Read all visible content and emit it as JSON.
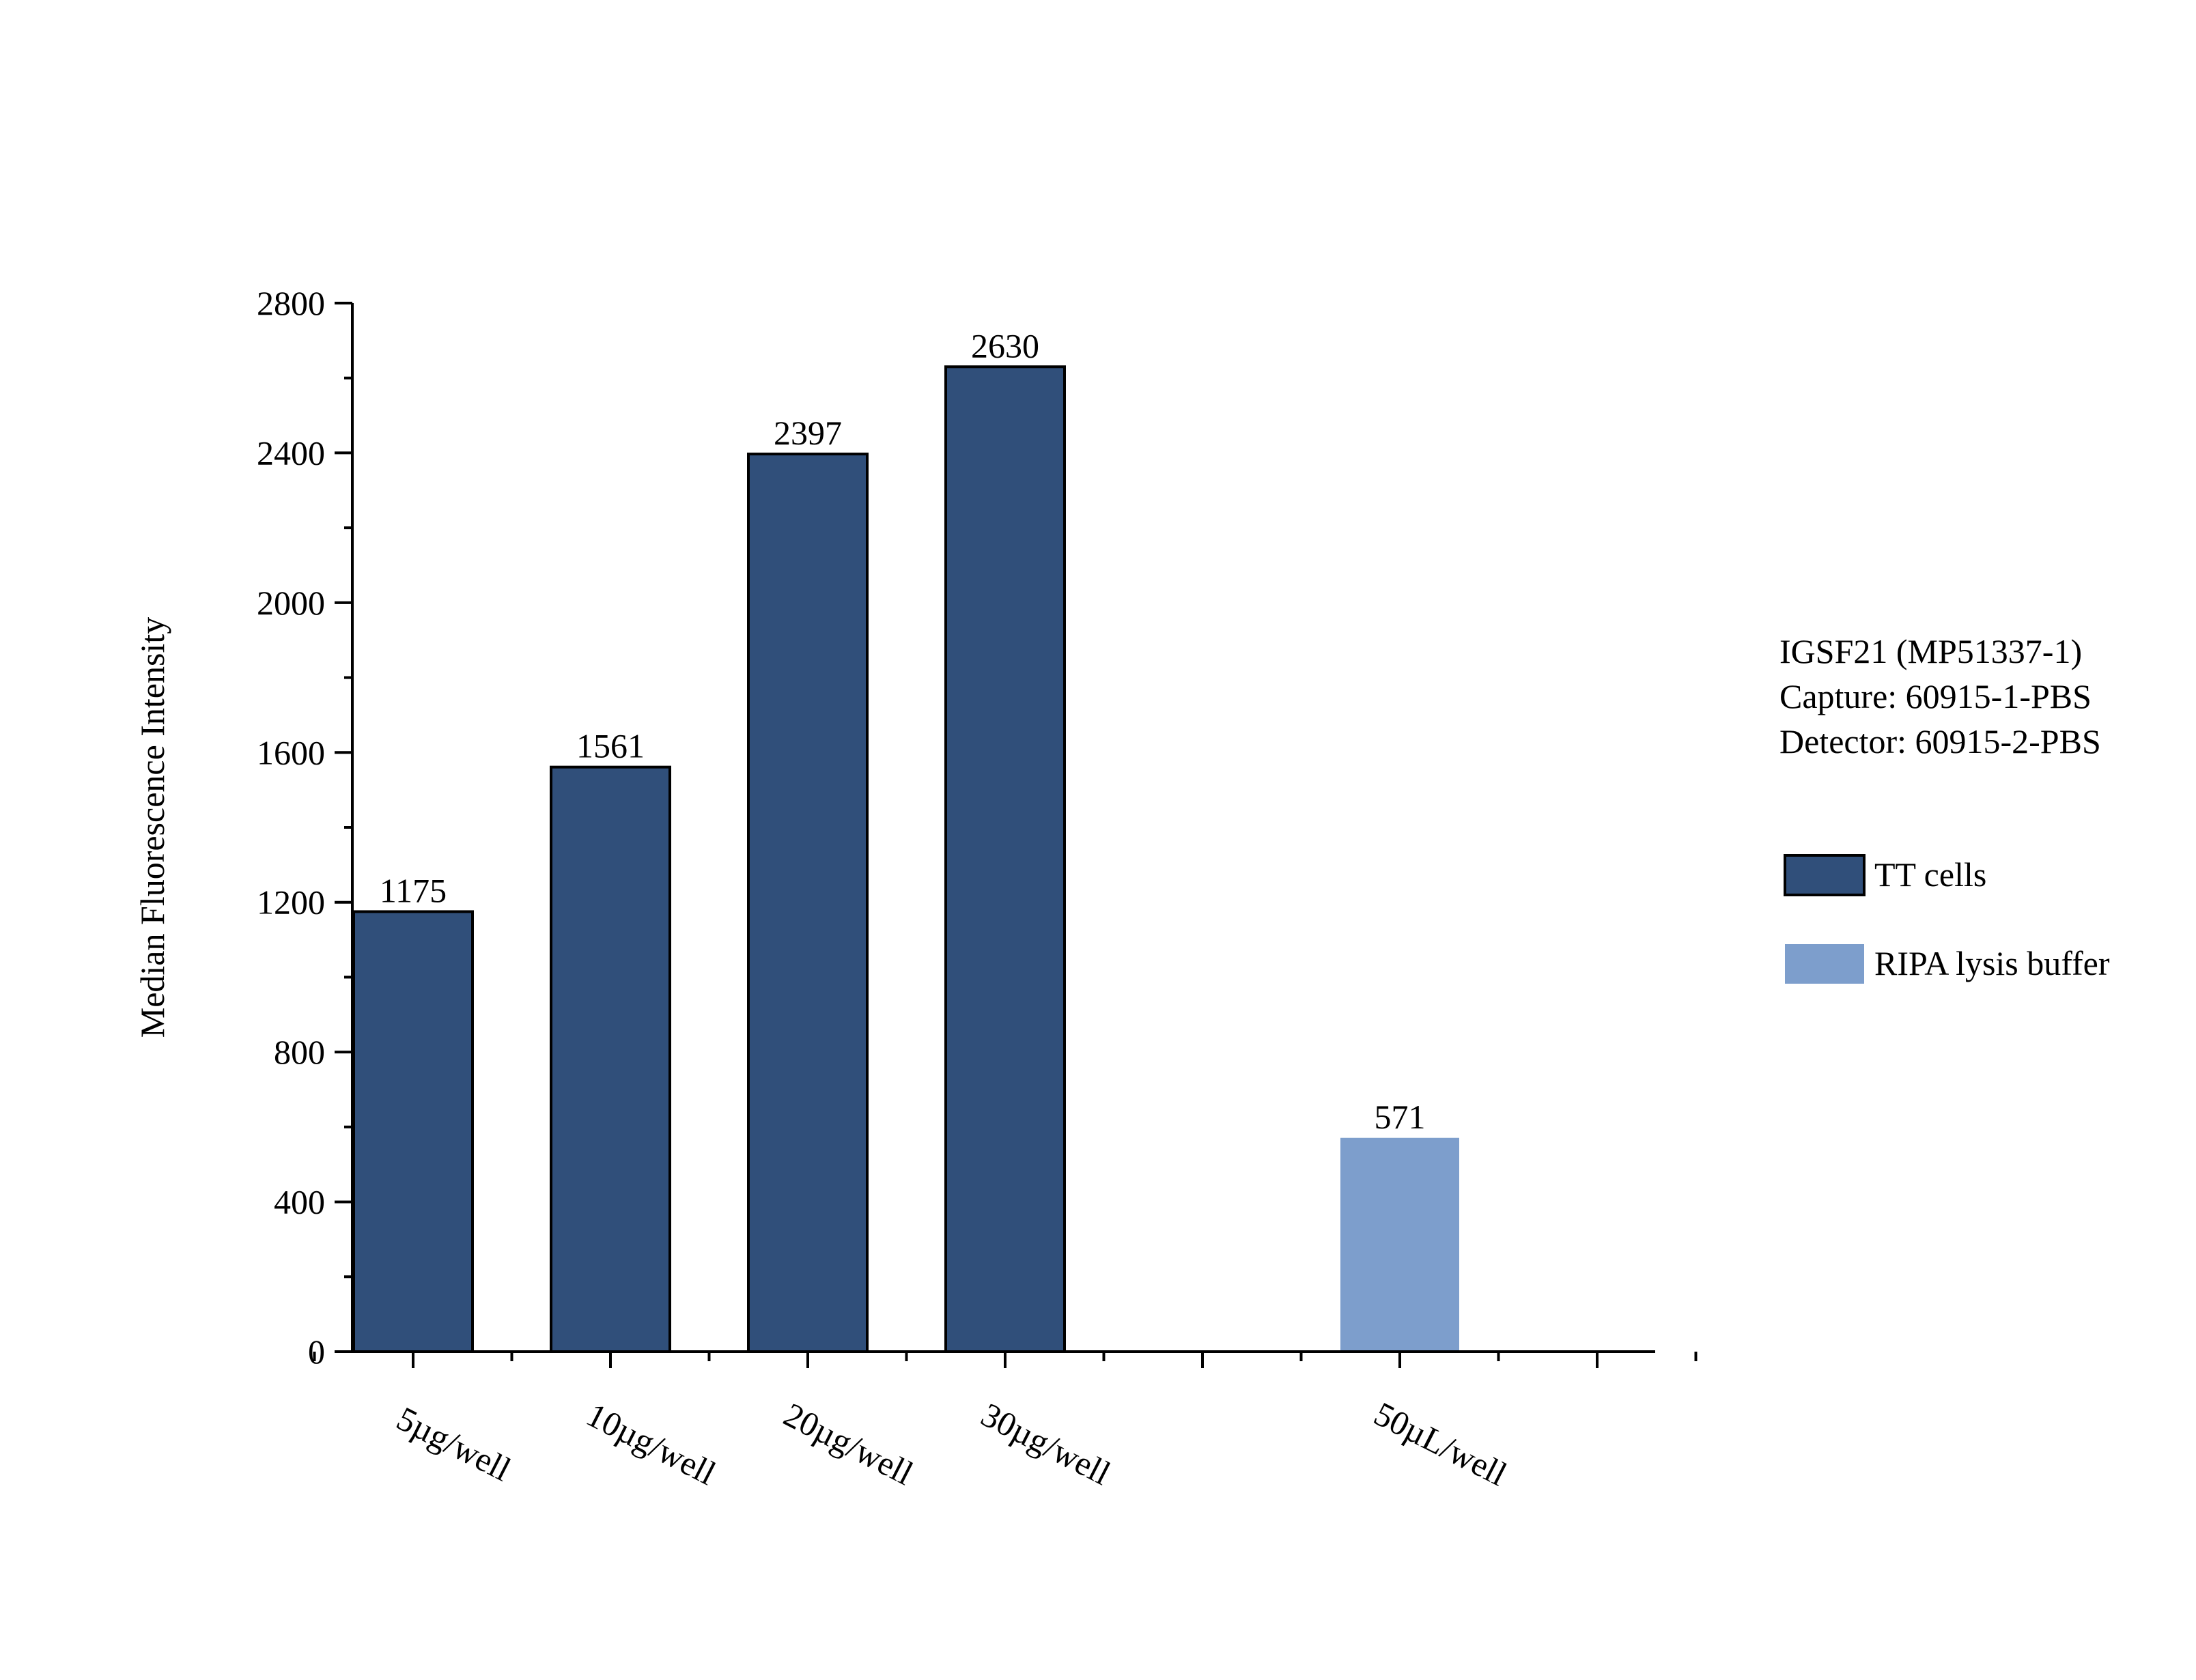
{
  "chart_data": {
    "type": "bar",
    "title": "",
    "xlabel": "",
    "ylabel": "Median Fluorescence Intensity",
    "ylim": [
      0,
      2800
    ],
    "yticks": [
      0,
      400,
      800,
      1200,
      1600,
      2000,
      2400,
      2800
    ],
    "y_minor_step": 200,
    "grid": false,
    "slot_count": 7,
    "bars": [
      {
        "category": "5µg/well",
        "value": 1175,
        "series": "TT cells",
        "slot": 0
      },
      {
        "category": "10µg/well",
        "value": 1561,
        "series": "TT cells",
        "slot": 1
      },
      {
        "category": "20µg/well",
        "value": 2397,
        "series": "TT cells",
        "slot": 2
      },
      {
        "category": "30µg/well",
        "value": 2630,
        "series": "TT cells",
        "slot": 3
      },
      {
        "category": "50µL/well",
        "value": 571,
        "series": "RIPA lysis buffer",
        "slot": 5
      }
    ],
    "legend": {
      "placement": "right",
      "info_lines": [
        "IGSF21 (MP51337-1)",
        "Capture: 60915-1-PBS",
        "Detector: 60915-2-PBS"
      ],
      "entries": [
        {
          "label": "TT cells",
          "color": "#304F7A",
          "outlined": true
        },
        {
          "label": "RIPA lysis buffer",
          "color": "#7D9ECC",
          "outlined": false
        }
      ]
    }
  }
}
